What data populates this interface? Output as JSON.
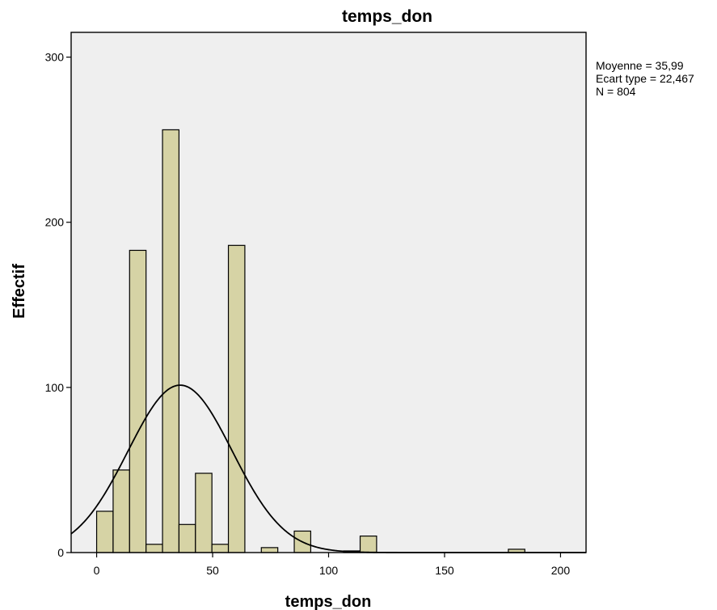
{
  "chart_data": {
    "type": "bar",
    "subtype": "histogram",
    "title": "temps_don",
    "xlabel": "temps_don",
    "ylabel": "Effectif",
    "xlim": [
      -11,
      211
    ],
    "ylim": [
      0,
      315
    ],
    "x_ticks": [
      0,
      50,
      100,
      150,
      200
    ],
    "y_ticks": [
      0,
      100,
      200,
      300
    ],
    "bin_width": 7.1,
    "bins": [
      {
        "start": 0.0,
        "count": 25
      },
      {
        "start": 7.1,
        "count": 50
      },
      {
        "start": 14.2,
        "count": 183
      },
      {
        "start": 21.3,
        "count": 5
      },
      {
        "start": 28.4,
        "count": 256
      },
      {
        "start": 35.5,
        "count": 17
      },
      {
        "start": 42.6,
        "count": 48
      },
      {
        "start": 49.7,
        "count": 5
      },
      {
        "start": 56.8,
        "count": 186
      },
      {
        "start": 71.0,
        "count": 3
      },
      {
        "start": 85.2,
        "count": 13
      },
      {
        "start": 106.5,
        "count": 1
      },
      {
        "start": 113.6,
        "count": 10
      },
      {
        "start": 177.5,
        "count": 2
      }
    ],
    "normal_curve": {
      "mean": 35.99,
      "sd": 22.467,
      "n": 804
    },
    "stats": [
      "Moyenne = 35,99",
      "Ecart type = 22,467",
      "N = 804"
    ],
    "grid": false,
    "colors": {
      "bar_fill": "#d6d3a5",
      "bar_stroke": "#000000",
      "plot_bg": "#efefef",
      "curve": "#000000"
    }
  }
}
